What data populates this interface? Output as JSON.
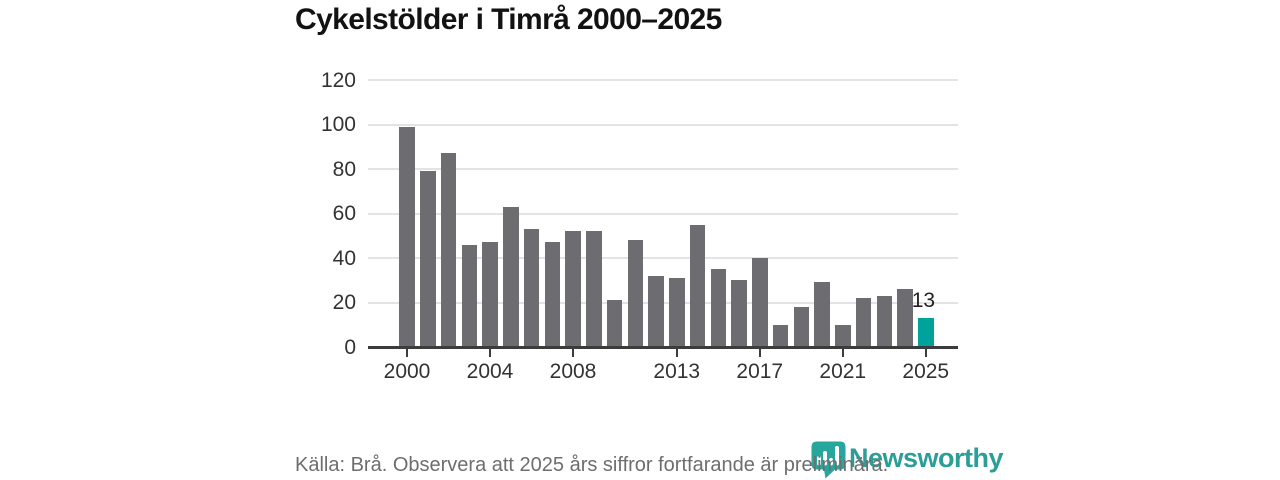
{
  "title": "Cykelstölder i Timrå 2000–2025",
  "chart_data": {
    "type": "bar",
    "title": "Cykelstölder i Timrå 2000–2025",
    "start_year": 2000,
    "categories": [
      2000,
      2001,
      2002,
      2003,
      2004,
      2005,
      2006,
      2007,
      2008,
      2009,
      2010,
      2011,
      2012,
      2013,
      2014,
      2015,
      2016,
      2017,
      2018,
      2019,
      2020,
      2021,
      2022,
      2023,
      2024,
      2025
    ],
    "values": [
      99,
      79,
      87,
      46,
      47,
      63,
      53,
      47,
      52,
      52,
      21,
      48,
      32,
      31,
      55,
      35,
      30,
      40,
      10,
      18,
      29,
      10,
      22,
      23,
      26,
      13
    ],
    "ylim": [
      0,
      120
    ],
    "yticks": [
      0,
      20,
      40,
      60,
      80,
      100,
      120
    ],
    "xtick_labels": [
      "2000",
      "2004",
      "2008",
      "2013",
      "2017",
      "2021",
      "2025"
    ],
    "highlight_year": 2025,
    "highlight_label": "13",
    "bar_color": "#6d6c71",
    "highlight_color": "#00a39b",
    "grid": true,
    "legend": false,
    "xlabel": "",
    "ylabel": ""
  },
  "footer": {
    "source": "Källa: Brå. Observera att 2025 års siffror fortfarande är preliminära.",
    "brand": "Newsworthy"
  },
  "colors": {
    "accent_teal": "#00a39b",
    "brand_teal": "#2b9e97",
    "bar_gray": "#6d6c71",
    "axis": "#3c3c3c",
    "gridline": "#e3e3e3"
  }
}
